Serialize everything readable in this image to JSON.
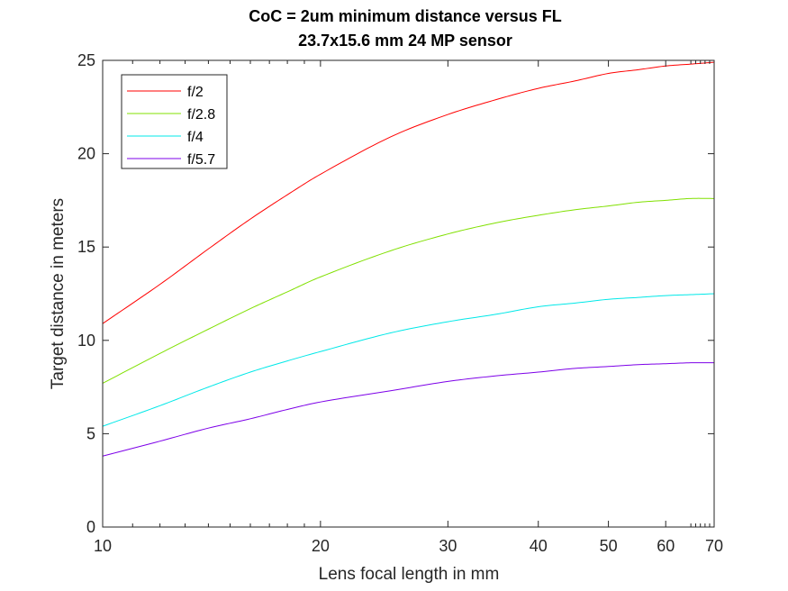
{
  "chart_data": {
    "type": "line",
    "title": "CoC = 2um minimum distance versus FL",
    "subtitle": "23.7x15.6 mm 24 MP sensor",
    "xlabel": "Lens focal length in mm",
    "ylabel": "Target distance in meters",
    "xscale": "log",
    "xlim": [
      10,
      70
    ],
    "ylim": [
      0,
      25
    ],
    "x_ticks": [
      10,
      20,
      30,
      40,
      50,
      60,
      70
    ],
    "y_ticks": [
      0,
      5,
      10,
      15,
      20,
      25
    ],
    "grid": false,
    "legend_position": "top-left",
    "x": [
      10,
      12,
      14,
      16,
      18,
      20,
      25,
      30,
      35,
      40,
      45,
      50,
      55,
      60,
      65,
      70
    ],
    "series": [
      {
        "name": "f/2",
        "color": "#ff0000",
        "values": [
          10.9,
          13.0,
          14.9,
          16.5,
          17.8,
          18.9,
          20.9,
          22.1,
          22.9,
          23.5,
          23.9,
          24.3,
          24.5,
          24.7,
          24.8,
          24.9
        ]
      },
      {
        "name": "f/2.8",
        "color": "#80e000",
        "values": [
          7.7,
          9.3,
          10.6,
          11.7,
          12.6,
          13.4,
          14.8,
          15.7,
          16.3,
          16.7,
          17.0,
          17.2,
          17.4,
          17.5,
          17.6,
          17.6
        ]
      },
      {
        "name": "f/4",
        "color": "#00e8e8",
        "values": [
          5.4,
          6.5,
          7.5,
          8.3,
          8.9,
          9.4,
          10.4,
          11.0,
          11.4,
          11.8,
          12.0,
          12.2,
          12.3,
          12.4,
          12.45,
          12.5
        ]
      },
      {
        "name": "f/5.7",
        "color": "#7d00e8",
        "values": [
          3.8,
          4.6,
          5.3,
          5.8,
          6.3,
          6.7,
          7.3,
          7.8,
          8.1,
          8.3,
          8.5,
          8.6,
          8.7,
          8.75,
          8.8,
          8.8
        ]
      }
    ]
  }
}
